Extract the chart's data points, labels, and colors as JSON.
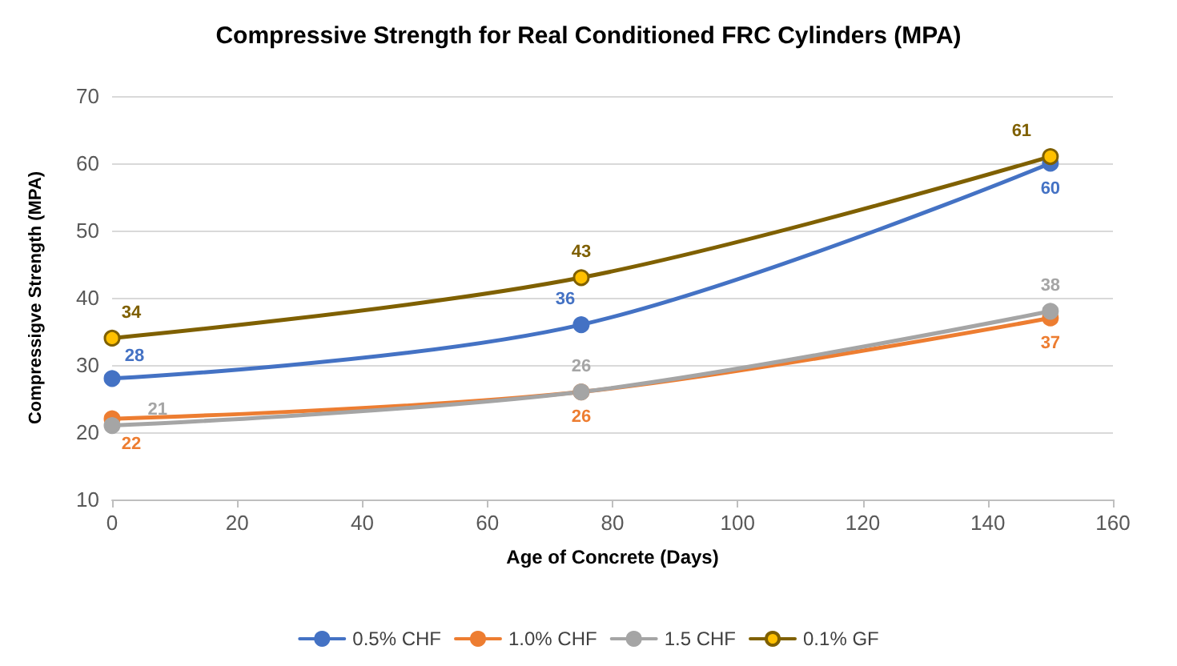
{
  "chart_data": {
    "type": "line",
    "title": "Compressive Strength for Real Conditioned FRC Cylinders (MPA)",
    "xlabel": "Age of Concrete (Days)",
    "ylabel": "Compressigve Strength (MPA)",
    "x": [
      0,
      75,
      150
    ],
    "series": [
      {
        "name": "0.5% CHF",
        "color": "#4472c4",
        "values": [
          28,
          36,
          60
        ]
      },
      {
        "name": "1.0% CHF",
        "color": "#ed7d31",
        "values": [
          22,
          26,
          37
        ]
      },
      {
        "name": "1.5 CHF",
        "color": "#a5a5a5",
        "values": [
          21,
          26,
          38
        ]
      },
      {
        "name": "0.1% GF",
        "color": "#7f6000",
        "values": [
          34,
          43,
          61
        ]
      }
    ],
    "xlim": [
      0,
      160
    ],
    "xticks": [
      0,
      20,
      40,
      60,
      80,
      100,
      120,
      140,
      160
    ],
    "ylim": [
      10,
      70
    ],
    "yticks": [
      10,
      20,
      30,
      40,
      50,
      60,
      70
    ],
    "grid": "y",
    "legend": "bottom",
    "marker": "circle",
    "line_style": "solid",
    "data_labels": true
  }
}
